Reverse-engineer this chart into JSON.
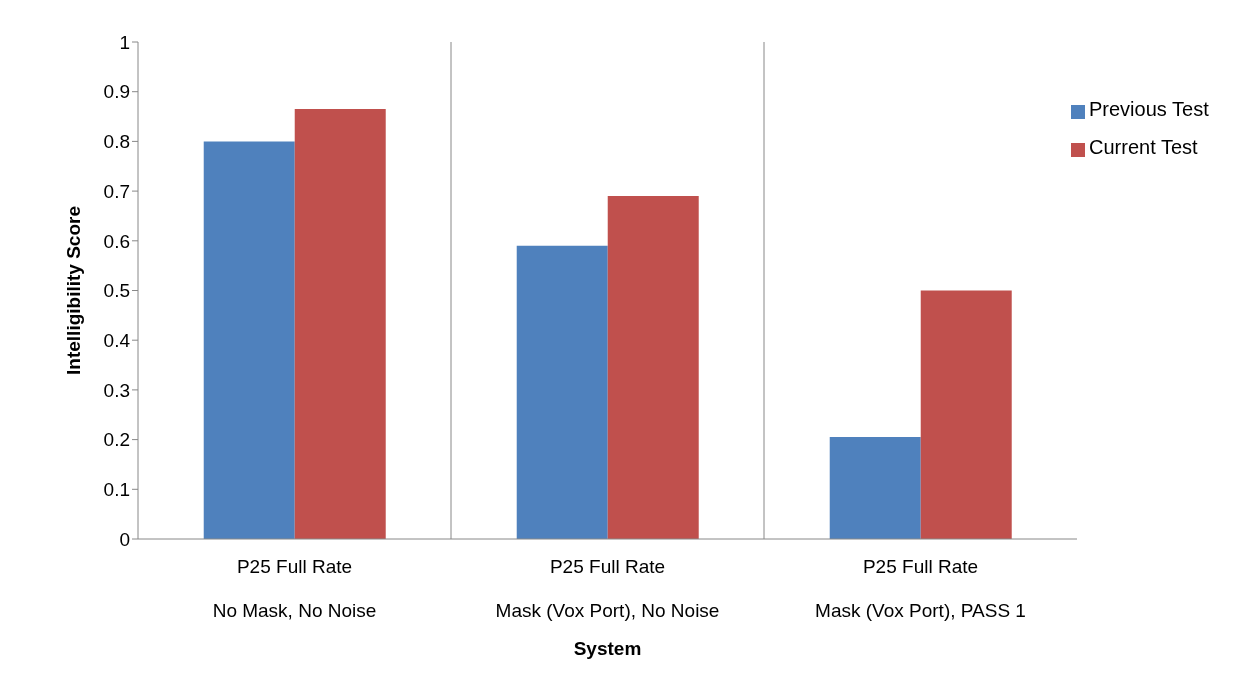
{
  "chart_data": {
    "type": "bar",
    "xlabel": "System",
    "ylabel": "Intelligibility Score",
    "categories": [
      "P25 Full Rate\nNo Mask, No Noise",
      "P25 Full Rate\nMask (Vox Port), No Noise",
      "P25 Full Rate\nMask (Vox Port), PASS 1"
    ],
    "series": [
      {
        "name": "Previous Test",
        "color": "#4f81bd",
        "values": [
          0.8,
          0.59,
          0.205
        ]
      },
      {
        "name": "Current Test",
        "color": "#c0504d",
        "values": [
          0.865,
          0.69,
          0.5
        ]
      }
    ],
    "ylim": [
      0,
      1
    ],
    "yticks": [
      0,
      0.1,
      0.2,
      0.3,
      0.4,
      0.5,
      0.6,
      0.7,
      0.8,
      0.9,
      1
    ],
    "grid": "x",
    "legend": "top right"
  }
}
